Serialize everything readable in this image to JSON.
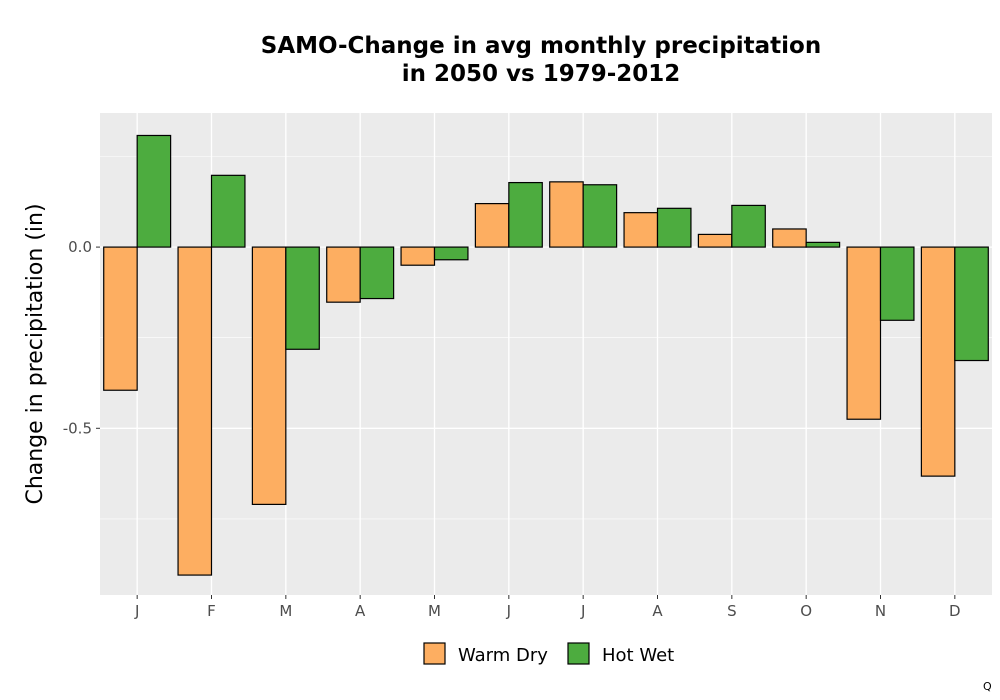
{
  "chart_data": {
    "type": "bar",
    "title_line1": "SAMO-Change in avg monthly precipitation",
    "title_line2": "in 2050 vs 1979-2012",
    "xlabel": "",
    "ylabel": "Change in precipitation (in)",
    "categories": [
      "J",
      "F",
      "M",
      "A",
      "M",
      "J",
      "J",
      "A",
      "S",
      "O",
      "N",
      "D"
    ],
    "series": [
      {
        "name": "Warm Dry",
        "color": "#FDAE61",
        "values": [
          -0.395,
          -0.905,
          -0.71,
          -0.152,
          -0.05,
          0.12,
          0.18,
          0.095,
          0.035,
          0.05,
          -0.475,
          -0.632
        ]
      },
      {
        "name": "Hot Wet",
        "color": "#4DAC3F",
        "values": [
          0.308,
          0.198,
          -0.282,
          -0.142,
          -0.035,
          0.178,
          0.172,
          0.107,
          0.115,
          0.013,
          -0.202,
          -0.313
        ]
      }
    ],
    "ylim": [
      -0.96,
      0.37
    ],
    "yticks": [
      0.0,
      -0.5
    ],
    "ytick_labels": [
      "0.0",
      "-0.5"
    ],
    "grid": true,
    "legend_position": "bottom",
    "panel_background": "#EBEBEB",
    "grid_color": "#FFFFFF"
  },
  "corner_mark": "Q"
}
